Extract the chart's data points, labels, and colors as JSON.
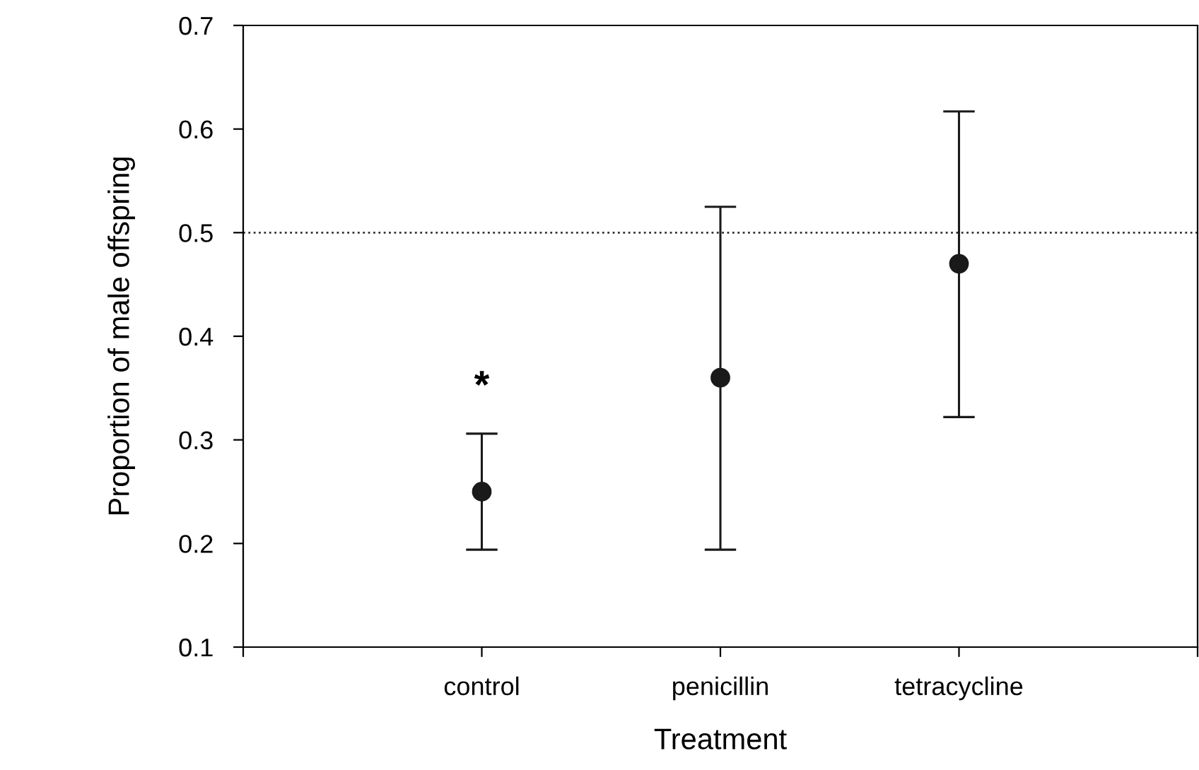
{
  "chart_data": {
    "type": "scatter",
    "xlabel": "Treatment",
    "ylabel": "Proportion of male offspring",
    "categories": [
      null,
      "control",
      "penicillin",
      "tetracycline",
      null
    ],
    "values": [
      null,
      0.25,
      0.36,
      0.47,
      null
    ],
    "errors": [
      null,
      [
        0.194,
        0.306
      ],
      [
        0.194,
        0.525
      ],
      [
        0.322,
        0.617
      ],
      null
    ],
    "color": "#1a1a1a",
    "marker": "circle",
    "ylim": [
      0.1,
      0.7
    ],
    "yticks": [
      0.1,
      0.2,
      0.3,
      0.4,
      0.5,
      0.6,
      0.7
    ],
    "ref_lines": [
      {
        "axis": "y",
        "value": 0.5,
        "line_style": "dotted",
        "color": "#333333"
      }
    ],
    "annotations": [
      "*"
    ],
    "grid": false,
    "legend": false
  }
}
